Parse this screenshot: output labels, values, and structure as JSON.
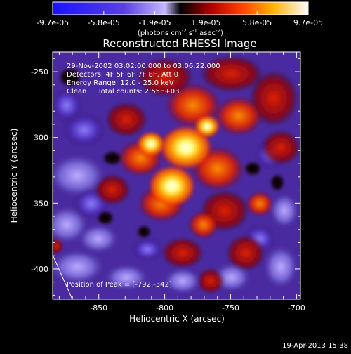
{
  "colorbar": {
    "tick_labels": [
      "-9.7e-05",
      "-5.8e-05",
      "-1.9e-05",
      "1.9e-05",
      "5.8e-05",
      "9.7e-05"
    ],
    "units_prefix": "(photons cm",
    "units_exp1": "-2",
    "units_mid": " s",
    "units_exp2": "-1",
    "units_mid2": " asec",
    "units_exp3": "-2",
    "units_suffix": ")",
    "colors": {
      "negative_low": "#1010ff",
      "negative_high": "#b0a0ff",
      "positive_low": "#ff3000",
      "positive_high": "#ffffff"
    }
  },
  "title": "Reconstructed RHESSI Image",
  "info": {
    "time": "29-Nov-2002 03:02:00.000 to 03:06:22.000",
    "detectors": "Detectors: 4F 5F 6F 7F 8F, Att 0",
    "energy": "Energy Range: 12.0 - 25.0 keV",
    "clean": "Clean     Total counts: 2.55E+03"
  },
  "peak_label": "Position of Peak = [-792,-342]",
  "timestamp": "19-Apr-2013 15:38",
  "chart_data": {
    "type": "heatmap",
    "title": "Reconstructed RHESSI Image",
    "xlabel": "Heliocentric X (arcsec)",
    "ylabel": "Heliocentric Y (arcsec)",
    "xlim": [
      -885,
      -697
    ],
    "ylim": [
      -423,
      -235
    ],
    "x_ticks": [
      -850,
      -800,
      -750,
      -700
    ],
    "y_ticks": [
      -250,
      -300,
      -350,
      -400
    ],
    "x_tick_labels": [
      "-850",
      "-800",
      "-750",
      "-700"
    ],
    "y_tick_labels": [
      "-250",
      "-300",
      "-350",
      "-400"
    ],
    "peak": [
      -792,
      -342
    ],
    "colorbar_range": [
      -9.7e-05,
      9.7e-05
    ]
  }
}
